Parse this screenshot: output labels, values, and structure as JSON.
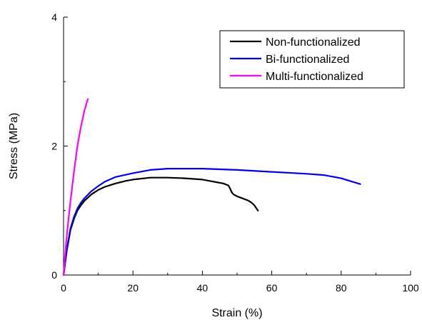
{
  "chart_data": {
    "type": "line",
    "title": "",
    "xlabel": "Strain (%)",
    "ylabel": "Stress (MPa)",
    "xlim": [
      0,
      100
    ],
    "ylim": [
      0,
      4
    ],
    "xticks": [
      0,
      20,
      40,
      60,
      80,
      100
    ],
    "yticks": [
      0,
      2,
      4
    ],
    "grid": false,
    "legend_position": "top-right",
    "series": [
      {
        "name": "Non-functionalized",
        "color": "#000000",
        "x": [
          0,
          0.5,
          1,
          2,
          3,
          4,
          5,
          6,
          8,
          10,
          12,
          15,
          18,
          20,
          25,
          30,
          35,
          40,
          44,
          46,
          47.5,
          48,
          48.5,
          49,
          50,
          51,
          52,
          53,
          54,
          55,
          56
        ],
        "y": [
          0,
          0.2,
          0.4,
          0.7,
          0.87,
          1.0,
          1.08,
          1.15,
          1.25,
          1.32,
          1.37,
          1.42,
          1.46,
          1.48,
          1.51,
          1.51,
          1.5,
          1.48,
          1.44,
          1.42,
          1.39,
          1.34,
          1.28,
          1.25,
          1.22,
          1.2,
          1.18,
          1.16,
          1.13,
          1.08,
          1.0
        ]
      },
      {
        "name": "Bi-functionalized",
        "color": "#0000e0",
        "x": [
          0,
          0.5,
          1,
          2,
          3,
          4,
          5,
          6,
          8,
          10,
          12,
          15,
          20,
          25,
          30,
          40,
          50,
          60,
          70,
          75,
          80,
          83,
          85.5
        ],
        "y": [
          0,
          0.22,
          0.42,
          0.72,
          0.9,
          1.03,
          1.12,
          1.19,
          1.3,
          1.38,
          1.45,
          1.52,
          1.58,
          1.63,
          1.65,
          1.65,
          1.63,
          1.6,
          1.57,
          1.55,
          1.5,
          1.45,
          1.41
        ]
      },
      {
        "name": "Multi-functionalized",
        "color": "#ff00ff",
        "x": [
          0,
          0.5,
          1,
          2,
          3,
          4,
          5,
          6,
          7
        ],
        "y": [
          0,
          0.35,
          0.65,
          1.15,
          1.6,
          2.0,
          2.3,
          2.55,
          2.73
        ]
      }
    ]
  }
}
